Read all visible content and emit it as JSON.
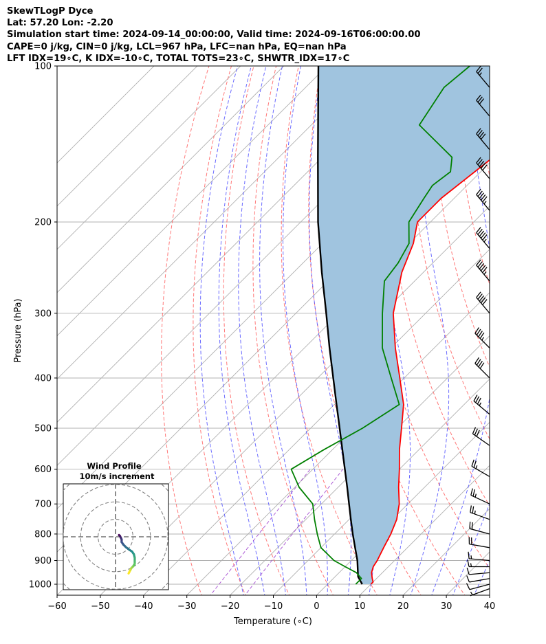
{
  "header": {
    "lines": [
      "SkewTLogP Dyce",
      "Lat: 57.20   Lon: -2.20",
      "Simulation start time: 2024-09-14_00:00:00, Valid time: 2024-09-16T06:00:00.00",
      "CAPE=0 j/kg, CIN=0 j/kg, LCL=967 hPa, LFC=nan hPa, EQ=nan hPa",
      "LFT IDX=19∘C, K IDX=-10∘C, TOTAL TOTS=23∘C, SHWTR_IDX=17∘C"
    ]
  },
  "chart_data": {
    "type": "line",
    "subtype": "skew-t log-p",
    "xlabel": "Temperature (∘C)",
    "ylabel": "Pressure (hPa)",
    "xlim": [
      -60,
      40
    ],
    "ylim": [
      1050,
      100
    ],
    "y_scale": "log",
    "grid": true,
    "x_ticks": [
      -60,
      -50,
      -40,
      -30,
      -20,
      -10,
      0,
      10,
      20,
      30,
      40
    ],
    "y_ticks": [
      100,
      200,
      300,
      400,
      500,
      600,
      700,
      800,
      900,
      1000
    ],
    "colors": {
      "temperature": "#ff0000",
      "dewpoint": "#008000",
      "parcel": "#000000",
      "shading": "#a0c4df",
      "dry_adiabats": "#ff6060",
      "moist_adiabats": "#5050ff",
      "mixing_ratio": "#9933cc",
      "isotherms": "#b0b0b0"
    },
    "series": [
      {
        "key": "temperature",
        "points": [
          [
            1000,
            10
          ],
          [
            990,
            10
          ],
          [
            975,
            9
          ],
          [
            950,
            7.5
          ],
          [
            925,
            6.5
          ],
          [
            900,
            6
          ],
          [
            850,
            4.5
          ],
          [
            800,
            3
          ],
          [
            750,
            1
          ],
          [
            700,
            -2
          ],
          [
            650,
            -6
          ],
          [
            600,
            -10
          ],
          [
            550,
            -14.5
          ],
          [
            500,
            -19
          ],
          [
            450,
            -24
          ],
          [
            400,
            -31
          ],
          [
            350,
            -39
          ],
          [
            300,
            -47.5
          ],
          [
            250,
            -55
          ],
          [
            220,
            -59
          ],
          [
            200,
            -63
          ],
          [
            180,
            -63
          ],
          [
            150,
            -60.5
          ],
          [
            130,
            -58
          ],
          [
            115,
            -55
          ],
          [
            100,
            -53
          ]
        ]
      },
      {
        "key": "dewpoint",
        "points": [
          [
            1000,
            6.5
          ],
          [
            975,
            6.5
          ],
          [
            950,
            4
          ],
          [
            925,
            0
          ],
          [
            900,
            -4
          ],
          [
            850,
            -10
          ],
          [
            800,
            -14
          ],
          [
            750,
            -18
          ],
          [
            700,
            -22
          ],
          [
            650,
            -29
          ],
          [
            600,
            -35
          ],
          [
            550,
            -32
          ],
          [
            500,
            -28
          ],
          [
            450,
            -25
          ],
          [
            400,
            -33
          ],
          [
            350,
            -42
          ],
          [
            300,
            -50
          ],
          [
            260,
            -57
          ],
          [
            240,
            -58
          ],
          [
            220,
            -60
          ],
          [
            200,
            -65
          ],
          [
            180,
            -67
          ],
          [
            170,
            -68
          ],
          [
            160,
            -67
          ],
          [
            150,
            -70
          ],
          [
            130,
            -85
          ],
          [
            110,
            -88
          ],
          [
            100,
            -87
          ]
        ]
      },
      {
        "key": "parcel",
        "points": [
          [
            1000,
            8
          ],
          [
            967,
            5.3
          ],
          [
            900,
            1.4
          ],
          [
            850,
            -2.1
          ],
          [
            800,
            -5.8
          ],
          [
            750,
            -9.6
          ],
          [
            700,
            -13.6
          ],
          [
            650,
            -17.9
          ],
          [
            600,
            -22.6
          ],
          [
            550,
            -27.7
          ],
          [
            500,
            -33.3
          ],
          [
            450,
            -39.5
          ],
          [
            400,
            -46.4
          ],
          [
            350,
            -54.2
          ],
          [
            300,
            -63
          ],
          [
            250,
            -73.5
          ],
          [
            200,
            -86
          ],
          [
            150,
            -101
          ],
          [
            100,
            -122
          ]
        ]
      }
    ],
    "wind_barbs": [
      {
        "p": 1020,
        "dir": 250,
        "spd": 5
      },
      {
        "p": 1000,
        "dir": 255,
        "spd": 10
      },
      {
        "p": 975,
        "dir": 260,
        "spd": 10
      },
      {
        "p": 950,
        "dir": 265,
        "spd": 10
      },
      {
        "p": 925,
        "dir": 270,
        "spd": 15
      },
      {
        "p": 900,
        "dir": 275,
        "spd": 15
      },
      {
        "p": 850,
        "dir": 280,
        "spd": 20
      },
      {
        "p": 800,
        "dir": 285,
        "spd": 20
      },
      {
        "p": 750,
        "dir": 290,
        "spd": 25
      },
      {
        "p": 700,
        "dir": 295,
        "spd": 25
      },
      {
        "p": 620,
        "dir": 300,
        "spd": 25
      },
      {
        "p": 540,
        "dir": 305,
        "spd": 30
      },
      {
        "p": 470,
        "dir": 310,
        "spd": 35
      },
      {
        "p": 400,
        "dir": 315,
        "spd": 40
      },
      {
        "p": 350,
        "dir": 315,
        "spd": 45
      },
      {
        "p": 300,
        "dir": 320,
        "spd": 50
      },
      {
        "p": 260,
        "dir": 320,
        "spd": 55
      },
      {
        "p": 225,
        "dir": 320,
        "spd": 55
      },
      {
        "p": 190,
        "dir": 320,
        "spd": 55
      },
      {
        "p": 165,
        "dir": 320,
        "spd": 50
      },
      {
        "p": 145,
        "dir": 320,
        "spd": 40
      },
      {
        "p": 125,
        "dir": 320,
        "spd": 30
      },
      {
        "p": 110,
        "dir": 320,
        "spd": 25
      }
    ],
    "hodograph": {
      "title": "Wind Profile",
      "subtitle": "10m/s increment",
      "points": [
        [
          4,
          2
        ],
        [
          5,
          1
        ],
        [
          6,
          -1
        ],
        [
          7,
          -3
        ],
        [
          7,
          -6
        ],
        [
          9,
          -9
        ],
        [
          12,
          -12
        ],
        [
          16,
          -15
        ],
        [
          19,
          -17
        ],
        [
          21,
          -20
        ],
        [
          22,
          -24
        ],
        [
          22,
          -28
        ],
        [
          22,
          -31
        ],
        [
          20,
          -34
        ],
        [
          18,
          -36
        ],
        [
          17,
          -38
        ],
        [
          16,
          -40
        ],
        [
          15,
          -42
        ]
      ]
    }
  }
}
